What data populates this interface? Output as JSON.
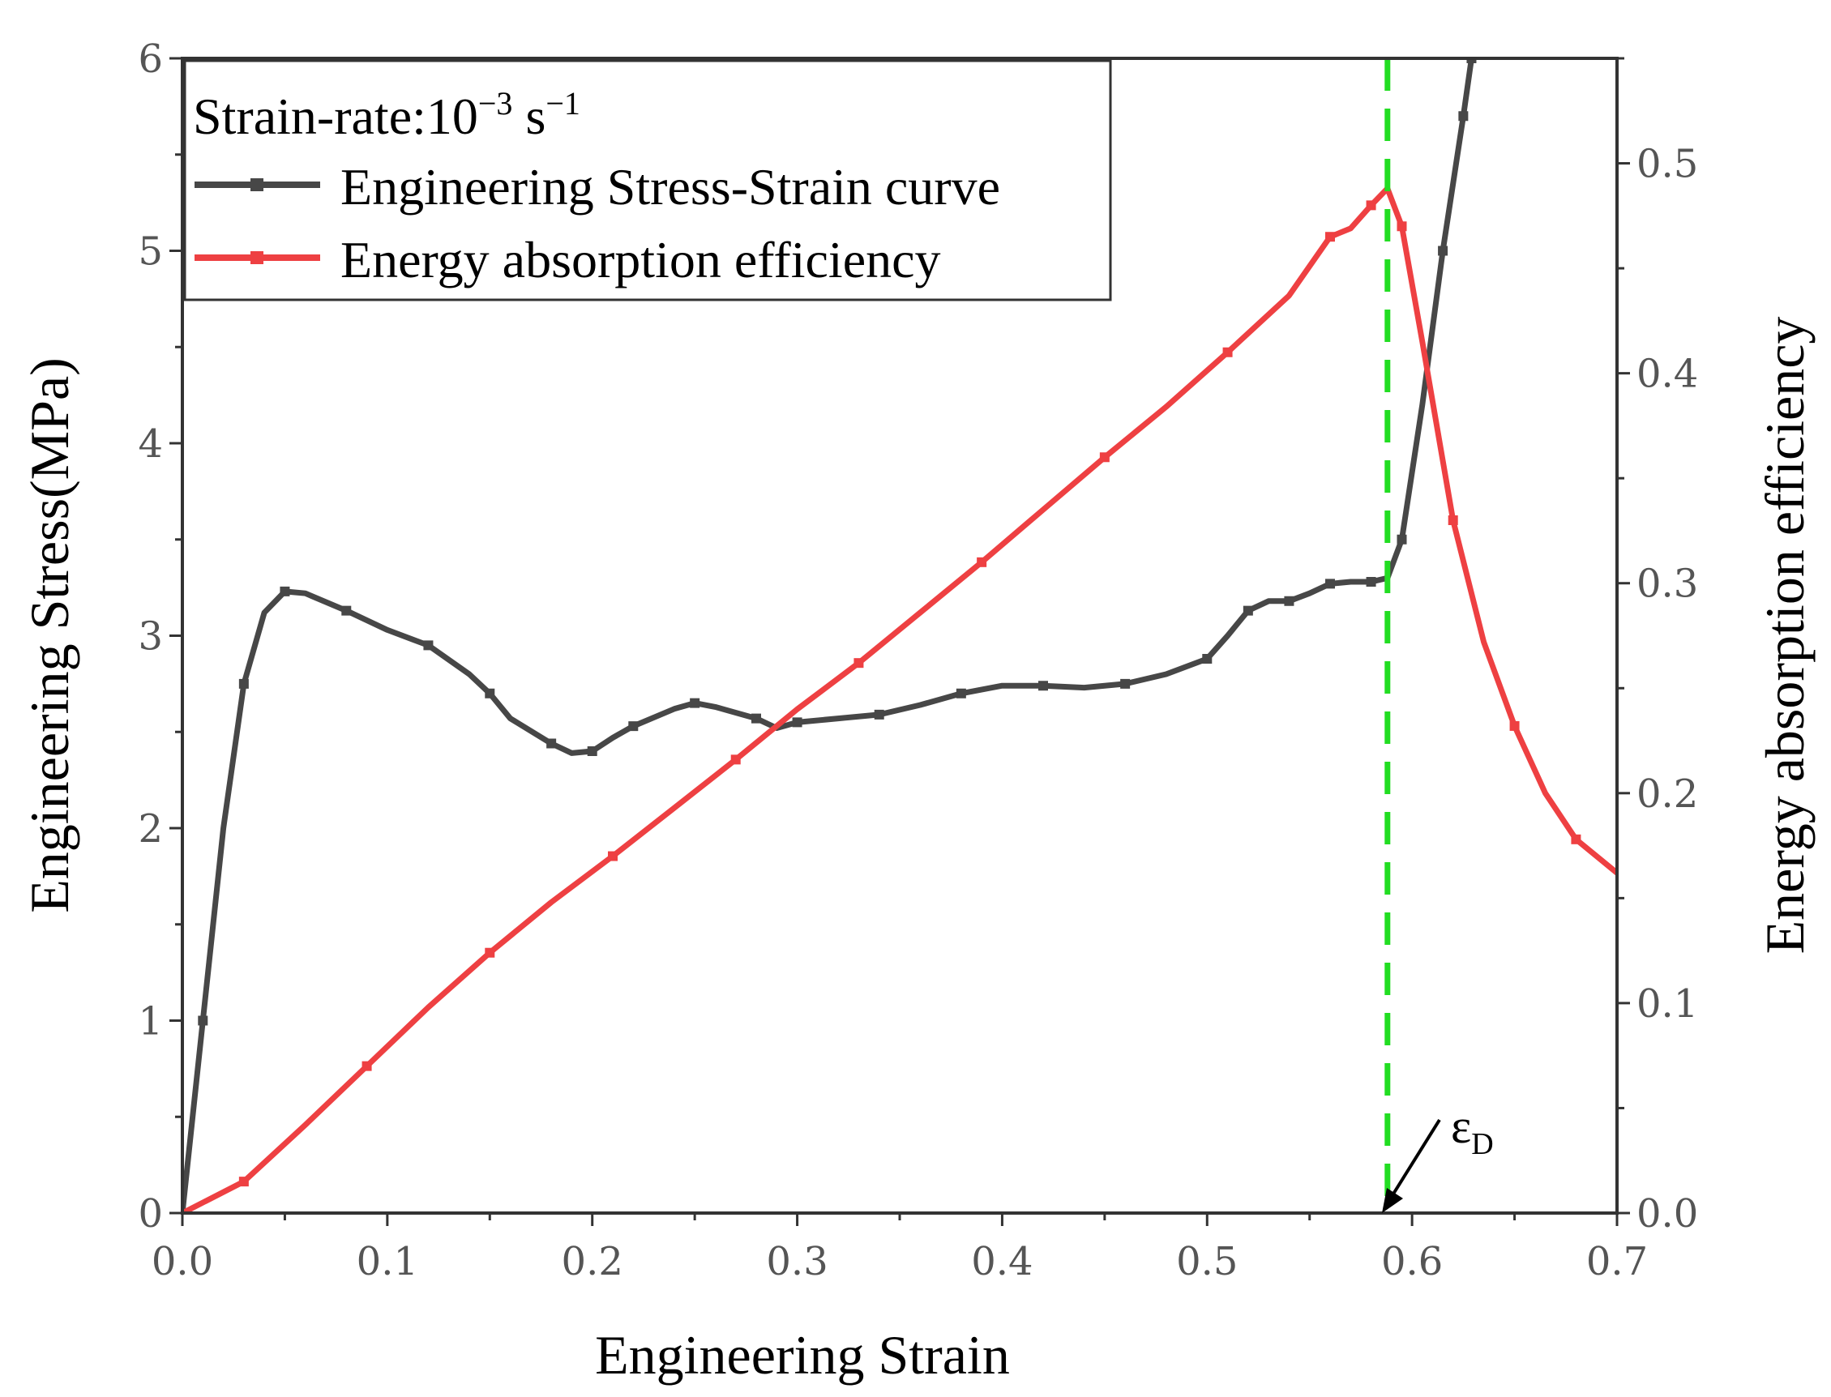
{
  "chart_data": {
    "type": "line",
    "title": "",
    "xlabel": "Engineering Strain",
    "ylabel": "Engineering Stress(MPa)",
    "y2label": "Energy absorption efficiency",
    "xlim": [
      0,
      0.7
    ],
    "ylim": [
      0,
      6
    ],
    "y2lim": [
      0,
      0.55
    ],
    "x_ticks": [
      "0.0",
      "0.1",
      "0.2",
      "0.3",
      "0.4",
      "0.5",
      "0.6",
      "0.7"
    ],
    "y_ticks": [
      "0",
      "1",
      "2",
      "3",
      "4",
      "5",
      "6"
    ],
    "y2_ticks": [
      "0.0",
      "0.1",
      "0.2",
      "0.3",
      "0.4",
      "0.5"
    ],
    "legend": {
      "header_prefix": "Strain-rate:10",
      "header_exp": "−3",
      "header_unit": " s",
      "header_unit_exp": "−1",
      "entries": [
        "Engineering Stress-Strain curve",
        "Energy absorption efficiency"
      ],
      "position": "top-left"
    },
    "annotation": {
      "text": "ε",
      "subscript": "D",
      "x": 0.588
    },
    "densification_line_x": 0.588,
    "series": [
      {
        "name": "Engineering Stress-Strain curve",
        "axis": "left",
        "color": "#474747",
        "x": [
          0,
          0.01,
          0.02,
          0.03,
          0.04,
          0.05,
          0.06,
          0.08,
          0.1,
          0.12,
          0.14,
          0.15,
          0.16,
          0.18,
          0.19,
          0.2,
          0.21,
          0.22,
          0.24,
          0.25,
          0.26,
          0.28,
          0.29,
          0.3,
          0.32,
          0.34,
          0.36,
          0.38,
          0.4,
          0.42,
          0.44,
          0.46,
          0.48,
          0.5,
          0.51,
          0.52,
          0.53,
          0.54,
          0.55,
          0.56,
          0.57,
          0.58,
          0.588,
          0.595,
          0.605,
          0.615,
          0.625,
          0.629
        ],
        "y": [
          0,
          1.0,
          2.0,
          2.75,
          3.12,
          3.23,
          3.22,
          3.13,
          3.03,
          2.95,
          2.8,
          2.7,
          2.57,
          2.44,
          2.39,
          2.4,
          2.47,
          2.53,
          2.62,
          2.65,
          2.63,
          2.57,
          2.52,
          2.55,
          2.57,
          2.59,
          2.64,
          2.7,
          2.74,
          2.74,
          2.73,
          2.75,
          2.8,
          2.88,
          3.0,
          3.13,
          3.18,
          3.18,
          3.22,
          3.27,
          3.28,
          3.28,
          3.3,
          3.5,
          4.2,
          5.0,
          5.7,
          6.0
        ]
      },
      {
        "name": "Energy absorption efficiency",
        "axis": "right",
        "color": "#ee4042",
        "x": [
          0,
          0.03,
          0.06,
          0.09,
          0.12,
          0.15,
          0.18,
          0.21,
          0.24,
          0.27,
          0.3,
          0.33,
          0.36,
          0.39,
          0.42,
          0.45,
          0.48,
          0.51,
          0.54,
          0.56,
          0.57,
          0.58,
          0.588,
          0.595,
          0.605,
          0.62,
          0.635,
          0.65,
          0.665,
          0.68,
          0.7
        ],
        "y": [
          0,
          0.015,
          0.042,
          0.07,
          0.098,
          0.124,
          0.148,
          0.17,
          0.193,
          0.216,
          0.24,
          0.262,
          0.286,
          0.31,
          0.335,
          0.36,
          0.384,
          0.41,
          0.437,
          0.465,
          0.469,
          0.48,
          0.488,
          0.47,
          0.415,
          0.33,
          0.272,
          0.232,
          0.2,
          0.178,
          0.162
        ]
      }
    ]
  }
}
